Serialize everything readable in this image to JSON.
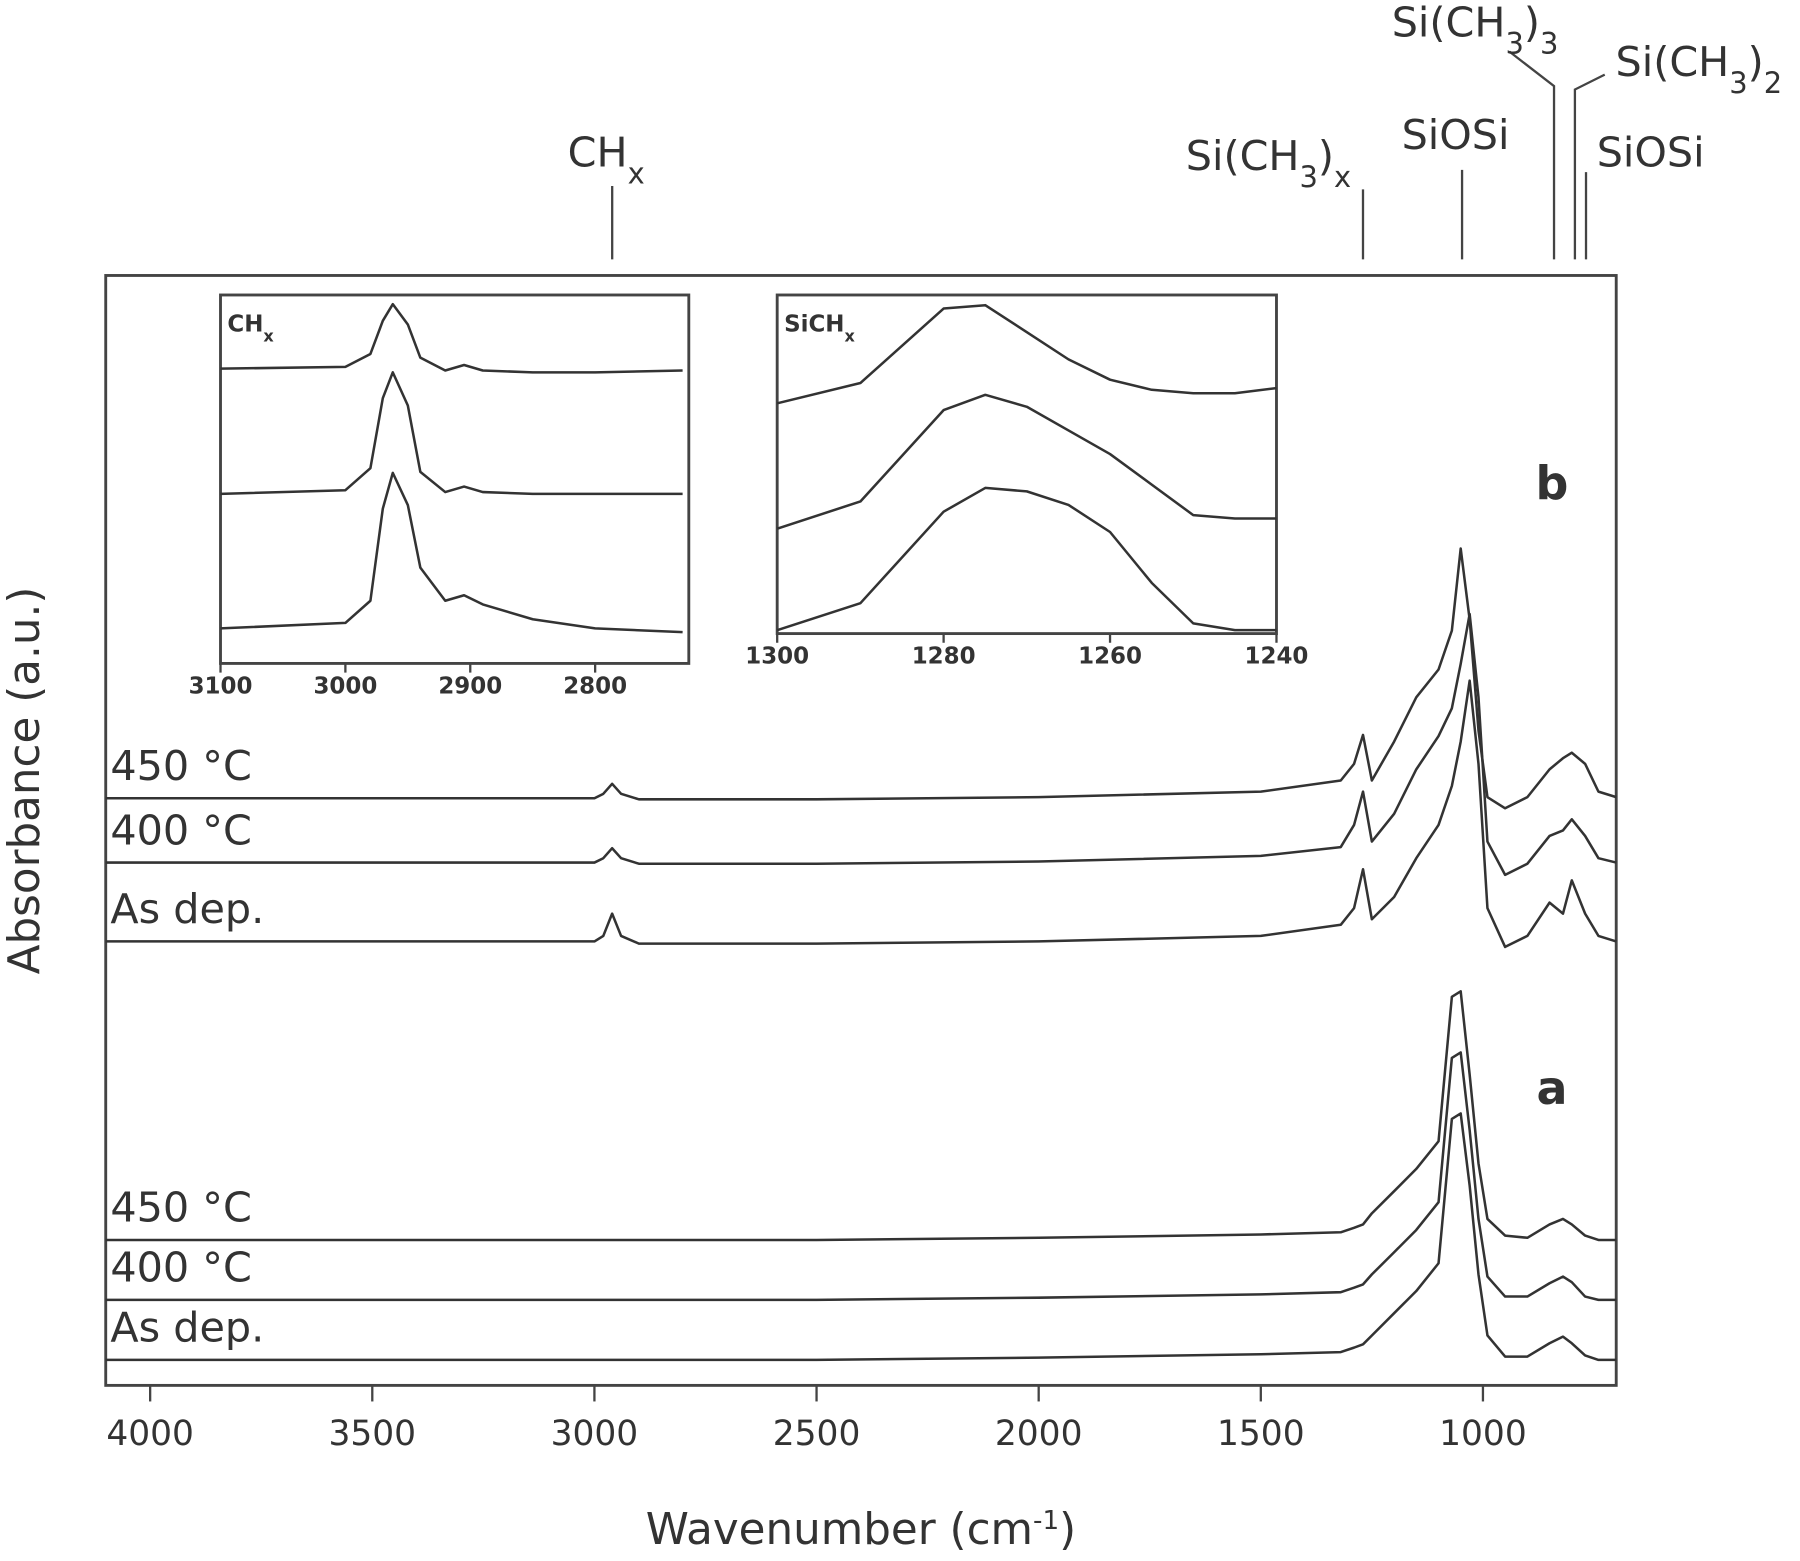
{
  "chart_data": [
    {
      "type": "line",
      "x_label": [
        {
          "text": "Wavenumber (cm"
        },
        {
          "text": "-1",
          "sup": true
        },
        {
          "text": ")"
        }
      ],
      "y_label": "Absorbance (a.u.)",
      "xlim": [
        4100,
        700
      ],
      "ylim": [
        0,
        10
      ],
      "xticks": [
        4000,
        3500,
        3000,
        2500,
        2000,
        1500,
        1000
      ],
      "x": [
        4100,
        3500,
        3000,
        2980,
        2960,
        2940,
        2900,
        2500,
        2000,
        1500,
        1320,
        1290,
        1270,
        1250,
        1200,
        1150,
        1100,
        1070,
        1050,
        1030,
        1010,
        990,
        950,
        900,
        850,
        820,
        800,
        770,
        740,
        700
      ],
      "panels": [
        {
          "label": "b",
          "series": [
            {
              "name": "450 °C",
              "color": "#333333",
              "values": [
                5.29,
                5.29,
                5.29,
                5.33,
                5.42,
                5.33,
                5.28,
                5.28,
                5.3,
                5.35,
                5.45,
                5.6,
                5.86,
                5.45,
                5.8,
                6.2,
                6.45,
                6.8,
                7.54,
                6.9,
                5.9,
                5.3,
                5.2,
                5.3,
                5.55,
                5.65,
                5.7,
                5.6,
                5.35,
                5.3
              ]
            },
            {
              "name": "400 °C",
              "color": "#333333",
              "values": [
                4.71,
                4.71,
                4.71,
                4.75,
                4.84,
                4.75,
                4.7,
                4.7,
                4.72,
                4.77,
                4.85,
                5.05,
                5.35,
                4.9,
                5.15,
                5.55,
                5.85,
                6.1,
                6.5,
                6.95,
                6.2,
                4.9,
                4.6,
                4.7,
                4.95,
                5.0,
                5.1,
                4.95,
                4.75,
                4.71
              ]
            },
            {
              "name": "As dep.",
              "color": "#333333",
              "values": [
                4.0,
                4.0,
                4.0,
                4.05,
                4.25,
                4.05,
                3.98,
                3.98,
                4.0,
                4.05,
                4.15,
                4.3,
                4.65,
                4.2,
                4.4,
                4.75,
                5.05,
                5.4,
                5.8,
                6.35,
                5.6,
                4.3,
                3.95,
                4.05,
                4.35,
                4.25,
                4.55,
                4.25,
                4.05,
                4.0
              ]
            }
          ]
        },
        {
          "label": "a",
          "series": [
            {
              "name": "450 °C",
              "color": "#333333",
              "values": [
                1.31,
                1.31,
                1.31,
                1.31,
                1.31,
                1.31,
                1.31,
                1.31,
                1.33,
                1.36,
                1.38,
                1.42,
                1.45,
                1.55,
                1.75,
                1.95,
                2.2,
                3.5,
                3.55,
                2.8,
                2.0,
                1.5,
                1.35,
                1.33,
                1.45,
                1.5,
                1.45,
                1.35,
                1.31,
                1.31
              ]
            },
            {
              "name": "400 °C",
              "color": "#333333",
              "values": [
                0.77,
                0.77,
                0.77,
                0.77,
                0.77,
                0.77,
                0.77,
                0.77,
                0.79,
                0.82,
                0.84,
                0.88,
                0.91,
                1.0,
                1.2,
                1.4,
                1.65,
                2.95,
                3.0,
                2.3,
                1.5,
                0.98,
                0.8,
                0.8,
                0.92,
                0.98,
                0.93,
                0.8,
                0.77,
                0.77
              ]
            },
            {
              "name": "As dep.",
              "color": "#333333",
              "values": [
                0.23,
                0.23,
                0.23,
                0.23,
                0.23,
                0.23,
                0.23,
                0.23,
                0.25,
                0.28,
                0.3,
                0.34,
                0.37,
                0.45,
                0.65,
                0.85,
                1.1,
                2.4,
                2.45,
                1.8,
                1.0,
                0.45,
                0.26,
                0.26,
                0.38,
                0.44,
                0.38,
                0.27,
                0.23,
                0.23
              ]
            }
          ]
        }
      ],
      "annotations": [
        {
          "x": 2960,
          "parts": [
            {
              "text": "CH"
            },
            {
              "text": "x",
              "sub": true
            }
          ]
        },
        {
          "x": 1270,
          "parts": [
            {
              "text": "Si(CH"
            },
            {
              "text": "3",
              "sub": true
            },
            {
              "text": ")"
            },
            {
              "text": "x",
              "sub": true
            }
          ]
        },
        {
          "x": 1047,
          "parts": [
            {
              "text": "SiOSi"
            }
          ]
        },
        {
          "x": 840,
          "parts": [
            {
              "text": "Si(CH"
            },
            {
              "text": "3",
              "sub": true
            },
            {
              "text": ")"
            },
            {
              "text": "3",
              "sub": true
            }
          ]
        },
        {
          "x": 793,
          "parts": [
            {
              "text": "Si(CH"
            },
            {
              "text": "3",
              "sub": true
            },
            {
              "text": ")"
            },
            {
              "text": "2",
              "sub": true
            }
          ]
        },
        {
          "x": 768,
          "parts": [
            {
              "text": "SiOSi"
            }
          ]
        }
      ]
    },
    {
      "type": "line",
      "label": [
        {
          "text": "CH"
        },
        {
          "text": "x",
          "sub": true
        }
      ],
      "xlim": [
        3100,
        2725
      ],
      "ylim": [
        0,
        10
      ],
      "xticks": [
        3100,
        3000,
        2900,
        2800
      ],
      "x": [
        3100,
        3000,
        2980,
        2970,
        2962,
        2950,
        2940,
        2920,
        2905,
        2890,
        2850,
        2800,
        2730
      ],
      "series": [
        {
          "color": "#333333",
          "values": [
            8.0,
            8.05,
            8.4,
            9.3,
            9.75,
            9.2,
            8.3,
            7.95,
            8.1,
            7.95,
            7.9,
            7.9,
            7.95
          ]
        },
        {
          "color": "#333333",
          "values": [
            4.6,
            4.7,
            5.3,
            7.2,
            7.9,
            7.0,
            5.2,
            4.65,
            4.8,
            4.65,
            4.6,
            4.6,
            4.6
          ]
        },
        {
          "color": "#333333",
          "values": [
            0.95,
            1.1,
            1.7,
            4.2,
            5.17,
            4.3,
            2.6,
            1.7,
            1.85,
            1.6,
            1.2,
            0.95,
            0.85
          ]
        }
      ]
    },
    {
      "type": "line",
      "label": [
        {
          "text": "SiCH"
        },
        {
          "text": "x",
          "sub": true
        }
      ],
      "xlim": [
        1300,
        1240
      ],
      "ylim": [
        0,
        10
      ],
      "xticks": [
        1300,
        1280,
        1260,
        1240
      ],
      "x": [
        1300,
        1290,
        1280,
        1275,
        1270,
        1265,
        1260,
        1255,
        1250,
        1245,
        1240
      ],
      "series": [
        {
          "color": "#333333",
          "values": [
            6.8,
            7.4,
            9.6,
            9.7,
            8.9,
            8.1,
            7.5,
            7.2,
            7.1,
            7.1,
            7.25
          ]
        },
        {
          "color": "#333333",
          "values": [
            3.1,
            3.9,
            6.6,
            7.05,
            6.7,
            6.0,
            5.3,
            4.4,
            3.5,
            3.4,
            3.4
          ]
        },
        {
          "color": "#333333",
          "values": [
            0.1,
            0.9,
            3.6,
            4.3,
            4.2,
            3.8,
            3.0,
            1.5,
            0.3,
            0.1,
            0.1
          ]
        }
      ]
    }
  ]
}
